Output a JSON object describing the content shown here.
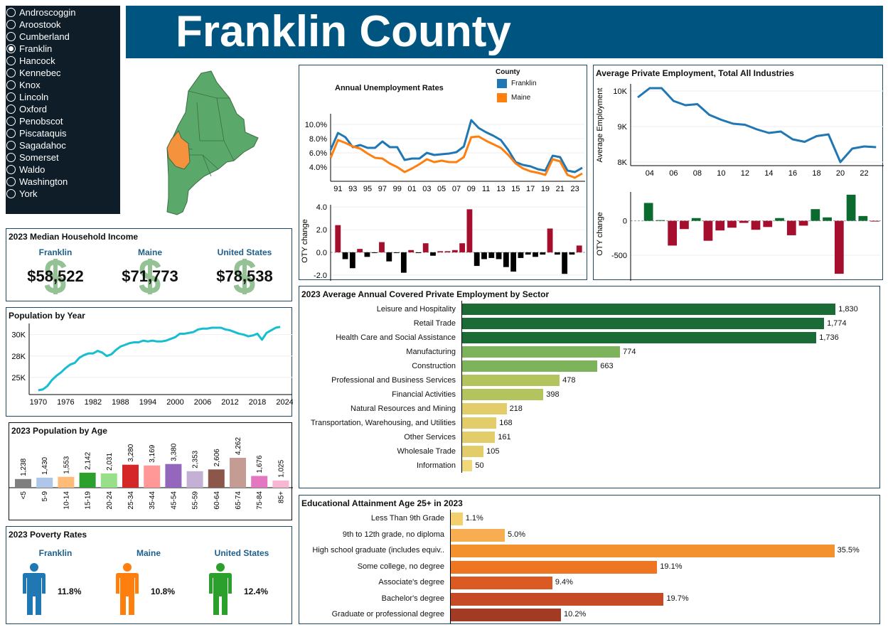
{
  "sidebar": {
    "items": [
      "Androscoggin",
      "Aroostook",
      "Cumberland",
      "Franklin",
      "Hancock",
      "Kennebec",
      "Knox",
      "Lincoln",
      "Oxford",
      "Penobscot",
      "Piscataquis",
      "Sagadahoc",
      "Somerset",
      "Waldo",
      "Washington",
      "York"
    ],
    "selected": "Franklin"
  },
  "header": {
    "title": "Franklin County"
  },
  "map": {
    "base_color": "#5aa96b",
    "highlight_color": "#f5923e",
    "highlighted": "Franklin"
  },
  "income": {
    "title": "2023 Median Household Income",
    "items": [
      {
        "label": "Franklin",
        "value": "$58,522"
      },
      {
        "label": "Maine",
        "value": "$71,773"
      },
      {
        "label": "United States",
        "value": "$78,538"
      }
    ],
    "icon": "dollar-sign-icon"
  },
  "poverty": {
    "title": "2023 Poverty Rates",
    "items": [
      {
        "label": "Franklin",
        "value": "11.8%",
        "color": "#1f77b4"
      },
      {
        "label": "Maine",
        "value": "10.8%",
        "color": "#ff7f0e"
      },
      {
        "label": "United States",
        "value": "12.4%",
        "color": "#2ca02c"
      }
    ],
    "icon": "person-icon"
  },
  "chart_data": [
    {
      "id": "unemployment",
      "type": "line",
      "title": "Annual Unemployment Rates",
      "legend_title": "County",
      "legend": "top-right",
      "x": [
        1990,
        1991,
        1992,
        1993,
        1994,
        1995,
        1996,
        1997,
        1998,
        1999,
        2000,
        2001,
        2002,
        2003,
        2004,
        2005,
        2006,
        2007,
        2008,
        2009,
        2010,
        2011,
        2012,
        2013,
        2014,
        2015,
        2016,
        2017,
        2018,
        2019,
        2020,
        2021,
        2022,
        2023,
        2024
      ],
      "xticks": [
        "91",
        "93",
        "95",
        "97",
        "99",
        "01",
        "03",
        "05",
        "07",
        "09",
        "11",
        "13",
        "15",
        "17",
        "19",
        "21",
        "23"
      ],
      "yticks": [
        "4.0%",
        "6.0%",
        "8.0%",
        "10.0%"
      ],
      "ylim": [
        2.0,
        11.5
      ],
      "series": [
        {
          "name": "Franklin",
          "color": "#1f77b4",
          "values": [
            6.4,
            8.8,
            8.2,
            6.8,
            7.1,
            6.7,
            6.7,
            7.6,
            6.8,
            6.8,
            5.0,
            5.2,
            5.2,
            6.0,
            5.7,
            5.8,
            5.9,
            6.1,
            6.9,
            10.6,
            9.5,
            8.9,
            8.4,
            7.8,
            6.4,
            4.7,
            4.3,
            4.1,
            3.7,
            3.5,
            5.6,
            5.4,
            3.5,
            3.3,
            3.9
          ]
        },
        {
          "name": "Maine",
          "color": "#ff7f0e",
          "values": [
            5.3,
            7.8,
            7.4,
            6.9,
            6.6,
            5.9,
            5.3,
            5.2,
            4.5,
            4.0,
            3.3,
            3.8,
            4.4,
            5.1,
            4.7,
            4.9,
            4.7,
            4.7,
            5.4,
            8.2,
            8.3,
            7.7,
            7.2,
            6.7,
            5.7,
            4.5,
            3.8,
            3.4,
            3.2,
            2.9,
            5.1,
            4.8,
            2.9,
            2.5,
            3.1
          ]
        }
      ]
    },
    {
      "id": "unemployment_oty",
      "type": "bar",
      "ylabel": "OTY change",
      "yticks": [
        "-2.0",
        "0.0",
        "2.0",
        "4.0"
      ],
      "ylim": [
        -2.2,
        4.2
      ],
      "pos_color": "#a50f2d",
      "neg_color": "#000000",
      "x": [
        1991,
        1992,
        1993,
        1994,
        1995,
        1996,
        1997,
        1998,
        1999,
        2000,
        2001,
        2002,
        2003,
        2004,
        2005,
        2006,
        2007,
        2008,
        2009,
        2010,
        2011,
        2012,
        2013,
        2014,
        2015,
        2016,
        2017,
        2018,
        2019,
        2020,
        2021,
        2022,
        2023,
        2024
      ],
      "values": [
        2.4,
        -0.6,
        -1.4,
        0.3,
        -0.4,
        -0.05,
        0.9,
        -0.8,
        -0.05,
        -1.8,
        0.2,
        -0.05,
        0.8,
        -0.3,
        0.1,
        0.1,
        0.2,
        0.8,
        3.8,
        -1.2,
        -0.6,
        -0.5,
        -0.6,
        -1.3,
        -1.7,
        -0.5,
        -0.2,
        -0.4,
        -0.2,
        2.1,
        -0.2,
        -1.9,
        -0.2,
        0.6
      ]
    },
    {
      "id": "employment",
      "type": "line",
      "title": "Average Private Employment, Total All Industries",
      "ylabel": "Average Employment",
      "x": [
        2003,
        2004,
        2005,
        2006,
        2007,
        2008,
        2009,
        2010,
        2011,
        2012,
        2013,
        2014,
        2015,
        2016,
        2017,
        2018,
        2019,
        2020,
        2021,
        2022,
        2023
      ],
      "xticks": [
        "04",
        "06",
        "08",
        "10",
        "12",
        "14",
        "16",
        "18",
        "20",
        "22"
      ],
      "yticks": [
        "8K",
        "9K",
        "10K"
      ],
      "ylim": [
        7900,
        10200
      ],
      "series": [
        {
          "color": "#1f77b4",
          "values": [
            9820,
            10080,
            10080,
            9720,
            9600,
            9630,
            9330,
            9190,
            9080,
            9050,
            8920,
            8820,
            8860,
            8640,
            8570,
            8730,
            8780,
            8000,
            8380,
            8440,
            8420
          ]
        }
      ]
    },
    {
      "id": "employment_oty",
      "type": "bar",
      "ylabel": "OTY change",
      "yticks": [
        "-500",
        "0"
      ],
      "ylim": [
        -800,
        420
      ],
      "pos_color": "#0b6a2e",
      "neg_color": "#a50f2d",
      "x": [
        2004,
        2005,
        2006,
        2007,
        2008,
        2009,
        2010,
        2011,
        2012,
        2013,
        2014,
        2015,
        2016,
        2017,
        2018,
        2019,
        2020,
        2021,
        2022,
        2023
      ],
      "values": [
        260,
        10,
        -360,
        -120,
        40,
        -290,
        -140,
        -100,
        -30,
        -130,
        -90,
        40,
        -210,
        -70,
        170,
        50,
        -770,
        380,
        70,
        -10
      ]
    },
    {
      "id": "population",
      "type": "line",
      "title": "Population by Year",
      "color": "#17becf",
      "xticks": [
        "1970",
        "1976",
        "1982",
        "1988",
        "1994",
        "2000",
        "2006",
        "2012",
        "2018",
        "2024"
      ],
      "yticks": [
        "25K",
        "28K",
        "30K"
      ],
      "ytick_values": [
        25000,
        27500,
        30000
      ],
      "ylim": [
        23000,
        31300
      ],
      "xlim": [
        1968,
        2025
      ],
      "x": [
        1970,
        1971,
        1972,
        1973,
        1974,
        1975,
        1976,
        1977,
        1978,
        1979,
        1980,
        1981,
        1982,
        1983,
        1984,
        1985,
        1986,
        1987,
        1988,
        1989,
        1990,
        1991,
        1992,
        1993,
        1994,
        1995,
        1996,
        1997,
        1998,
        1999,
        2000,
        2001,
        2002,
        2003,
        2004,
        2005,
        2006,
        2007,
        2008,
        2009,
        2010,
        2011,
        2012,
        2013,
        2014,
        2015,
        2016,
        2017,
        2018,
        2019,
        2020,
        2021,
        2022,
        2023
      ],
      "values": [
        23500,
        23600,
        24000,
        24700,
        25200,
        25600,
        26100,
        26500,
        26700,
        27300,
        27600,
        27800,
        27800,
        28100,
        27900,
        27500,
        27700,
        28200,
        28600,
        28800,
        29000,
        29100,
        29100,
        29300,
        29200,
        29300,
        29200,
        29200,
        29300,
        29500,
        29700,
        30100,
        30100,
        30200,
        30300,
        30600,
        30700,
        30700,
        30800,
        30800,
        30800,
        30600,
        30500,
        30300,
        30100,
        30000,
        29800,
        29900,
        30100,
        29400,
        30200,
        30500,
        30800,
        30900
      ]
    },
    {
      "id": "age",
      "type": "bar",
      "title": "2023 Population by Age",
      "categories": [
        "<5",
        "5-9",
        "10-14",
        "15-19",
        "20-24",
        "25-34",
        "35-44",
        "45-54",
        "55-59",
        "60-64",
        "65-74",
        "75-84",
        "85+"
      ],
      "values": [
        1238,
        1430,
        1553,
        2142,
        2031,
        3280,
        3169,
        3380,
        2353,
        2606,
        4262,
        1676,
        1025
      ],
      "labels": [
        "1,238",
        "1,430",
        "1,553",
        "2,142",
        "2,031",
        "3,280",
        "3,169",
        "3,380",
        "2,353",
        "2,606",
        "4,262",
        "1,676",
        "1,025"
      ],
      "colors": [
        "#7f7f7f",
        "#aec7e8",
        "#ffbb78",
        "#2ca02c",
        "#98df8a",
        "#d62728",
        "#ff9896",
        "#9467bd",
        "#c5b0d5",
        "#8c564b",
        "#c49c94",
        "#e377c2",
        "#f7b6d2"
      ]
    },
    {
      "id": "sector",
      "type": "bar",
      "orientation": "horizontal",
      "title": "2023 Average Annual Covered Private Employment by Sector",
      "categories": [
        "Leisure and Hospitality",
        "Retail Trade",
        "Health Care and Social Assistance",
        "Manufacturing",
        "Construction",
        "Professional and Business Services",
        "Financial Activities",
        "Natural Resources and Mining",
        "Transportation, Warehousing, and Utilities",
        "Other Services",
        "Wholesale Trade",
        "Information"
      ],
      "values": [
        1830,
        1774,
        1736,
        774,
        663,
        478,
        398,
        218,
        168,
        161,
        105,
        50
      ],
      "labels": [
        "1,830",
        "1,774",
        "1,736",
        "774",
        "663",
        "478",
        "398",
        "218",
        "168",
        "161",
        "105",
        "50"
      ],
      "colors": [
        "#1a6b36",
        "#1a6b36",
        "#1a6b36",
        "#7db35a",
        "#7db35a",
        "#b3c35e",
        "#b3c35e",
        "#e3cd6b",
        "#e3cd6b",
        "#e3cd6b",
        "#e3cd6b",
        "#f1d878"
      ]
    },
    {
      "id": "education",
      "type": "bar",
      "orientation": "horizontal",
      "title": "Educational Attainment Age 25+ in 2023",
      "categories": [
        "Less Than 9th Grade",
        "9th to 12th grade, no diploma",
        "High school graduate (includes equiv..",
        "Some college, no degree",
        "Associate's degree",
        "Bachelor's degree",
        "Graduate or professional degree"
      ],
      "values": [
        1.1,
        5.0,
        35.5,
        19.1,
        9.4,
        19.7,
        10.2
      ],
      "labels": [
        "1.1%",
        "5.0%",
        "35.5%",
        "19.1%",
        "9.4%",
        "19.7%",
        "10.2%"
      ],
      "colors": [
        "#f3d06c",
        "#f7ae52",
        "#f3912f",
        "#ee7622",
        "#db5a23",
        "#c54a25",
        "#a33b24"
      ]
    }
  ]
}
